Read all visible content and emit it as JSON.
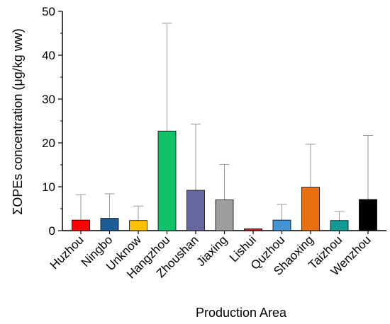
{
  "chart_data": {
    "type": "bar",
    "title": "",
    "xlabel": "Production Area",
    "ylabel": "ΣOPEs concentration (μg/kg ww)",
    "ylim": [
      0,
      50
    ],
    "yticks": [
      0,
      10,
      20,
      30,
      40,
      50
    ],
    "grid": false,
    "legend": "none",
    "error_bars": "upper standard deviation",
    "categories": [
      "Huzhou",
      "Ningbo",
      "Unknow",
      "Hangzhou",
      "Zhoushan",
      "Jiaxing",
      "Lishui",
      "Quzhou",
      "Shaoxing",
      "Taizhou",
      "Wenzhou"
    ],
    "values": [
      2.4,
      2.8,
      2.3,
      22.7,
      9.2,
      7.0,
      0.4,
      2.4,
      9.9,
      2.3,
      7.1
    ],
    "error_upper": [
      8.2,
      8.4,
      5.6,
      47.3,
      24.3,
      15.1,
      0.4,
      6.0,
      19.7,
      4.4,
      21.7
    ],
    "colors": [
      "#ff0000",
      "#1a5c96",
      "#ffc000",
      "#11c26a",
      "#6767a0",
      "#9e9e9e",
      "#d11a1a",
      "#4493d3",
      "#e86f10",
      "#129b94",
      "#000000"
    ]
  }
}
